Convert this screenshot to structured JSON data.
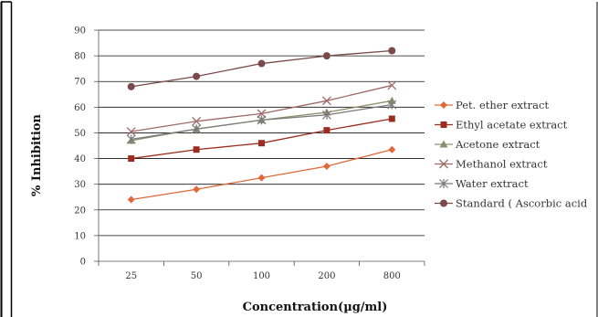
{
  "chart_data": {
    "type": "line",
    "xlabel": "Concentration(µg/ml)",
    "ylabel": "% Inhibition",
    "categories": [
      "25",
      "50",
      "100",
      "200",
      "800"
    ],
    "ylim": [
      0,
      90
    ],
    "yticks": [
      0,
      10,
      20,
      30,
      40,
      50,
      60,
      70,
      80,
      90
    ],
    "grid": true,
    "legend_position": "right",
    "series": [
      {
        "name": "Pet. ether extract",
        "values": [
          24,
          28,
          32.5,
          37,
          43.5
        ],
        "color": "#e0693a",
        "marker": "diamond"
      },
      {
        "name": "Ethyl  acetate extract",
        "values": [
          40,
          43.5,
          46,
          51,
          55.5
        ],
        "color": "#9b2d20",
        "marker": "square"
      },
      {
        "name": "Acetone extract",
        "values": [
          47,
          51.5,
          55,
          58,
          62.5
        ],
        "color": "#8f8f6b",
        "marker": "triangle"
      },
      {
        "name": "Methanol extract",
        "values": [
          50.5,
          54.5,
          57.5,
          62.5,
          68.5
        ],
        "color": "#a06a6a",
        "marker": "x"
      },
      {
        "name": "Water extract",
        "values": [
          47.5,
          51.5,
          55,
          57,
          61
        ],
        "color": "#7a7a7a",
        "marker": "star"
      },
      {
        "name": "Standard ( Ascorbic acid",
        "values": [
          68,
          72,
          77,
          80,
          82
        ],
        "color": "#7a4a4a",
        "marker": "circle"
      }
    ]
  }
}
